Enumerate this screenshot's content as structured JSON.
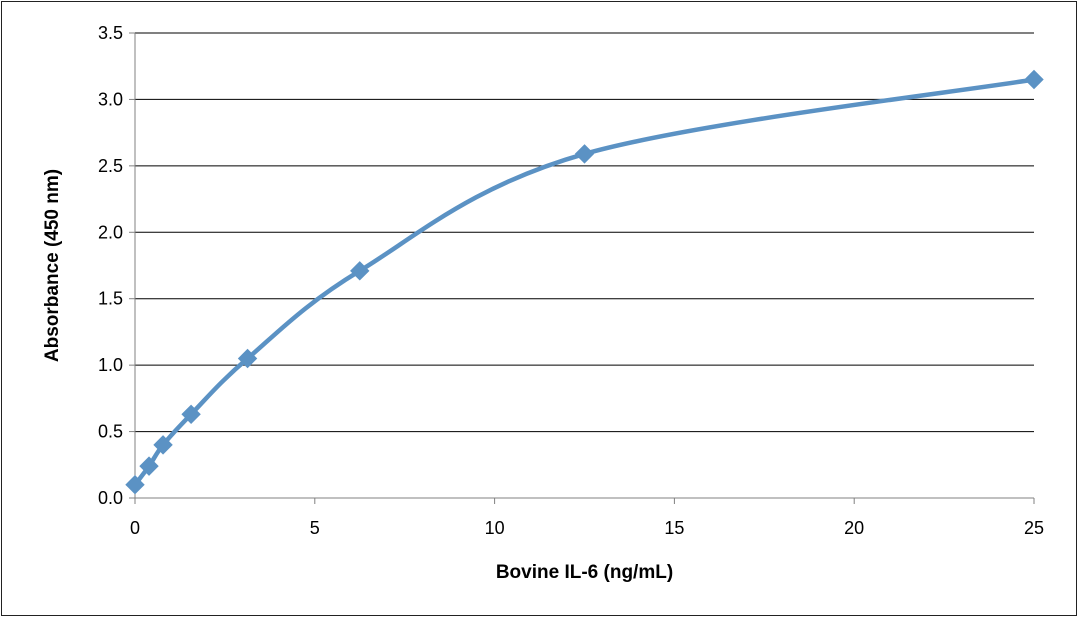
{
  "chart_data": {
    "type": "line",
    "title": "",
    "xlabel": "Bovine IL-6 (ng/mL)",
    "ylabel": "Absorbance  (450 nm)",
    "xlim": [
      0,
      25
    ],
    "ylim": [
      0,
      3.5
    ],
    "x_ticks": [
      "0",
      "5",
      "10",
      "15",
      "20",
      "25"
    ],
    "y_ticks": [
      "0.0",
      "0.5",
      "1.0",
      "1.5",
      "2.0",
      "2.5",
      "3.0",
      "3.5"
    ],
    "grid": "horizontal",
    "smooth": true,
    "marker": "diamond",
    "line_color": "#5B92C4",
    "series": [
      {
        "x": [
          0,
          0.39,
          0.78,
          1.56,
          3.13,
          6.25,
          12.5,
          25
        ],
        "y": [
          0.1,
          0.24,
          0.4,
          0.63,
          1.05,
          1.71,
          2.59,
          3.15
        ]
      }
    ]
  }
}
